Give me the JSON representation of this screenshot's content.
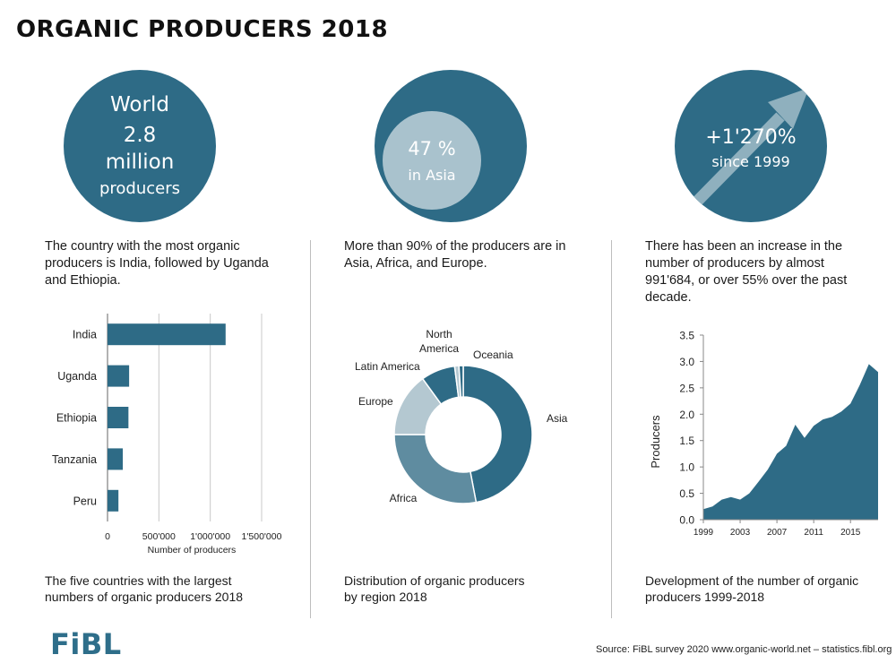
{
  "title": "ORGANIC PRODUCERS 2018",
  "colors": {
    "primary": "#2e6b86",
    "light": "#a9c2cd",
    "mid": "#5f8ca0",
    "pale": "#b4c8d1"
  },
  "panels": [
    {
      "circle": {
        "line1": "World",
        "line2": "2.8",
        "line3": "million",
        "line4": "producers"
      },
      "text": "The country with the most organic producers is India, followed by Uganda and Ethiopia.",
      "caption": "The five countries with the largest numbers of organic producers 2018"
    },
    {
      "circle": {
        "value": "47 %",
        "label": "in Asia"
      },
      "text": "More than 90% of the producers are in Asia, Africa, and Europe.",
      "caption": "Distribution of organic producers by region 2018"
    },
    {
      "circle": {
        "value": "+1'270%",
        "label": "since 1999"
      },
      "text": "There has been an increase in the number of producers by almost 991'684, or over 55% over the past decade.",
      "caption": "Development of the number of organic producers 1999-2018"
    }
  ],
  "chart_data": [
    {
      "type": "bar",
      "orientation": "horizontal",
      "categories": [
        "India",
        "Uganda",
        "Ethiopia",
        "Tanzania",
        "Peru"
      ],
      "values": [
        1149371,
        210352,
        203602,
        148610,
        106177
      ],
      "xlabel": "Number of producers",
      "xlim": [
        0,
        1500000
      ],
      "xticks": [
        "0",
        "500'000",
        "1'000'000",
        "1'500'000"
      ],
      "xtick_values": [
        0,
        500000,
        1000000,
        1500000
      ],
      "grid": true
    },
    {
      "type": "pie",
      "donut": true,
      "categories": [
        "Asia",
        "Africa",
        "Europe",
        "Latin America",
        "North America",
        "Oceania"
      ],
      "values": [
        47,
        28,
        15,
        8,
        1,
        1
      ]
    },
    {
      "type": "area",
      "x": [
        1999,
        2000,
        2001,
        2002,
        2003,
        2004,
        2005,
        2006,
        2007,
        2008,
        2009,
        2010,
        2011,
        2012,
        2013,
        2014,
        2015,
        2016,
        2017,
        2018
      ],
      "values": [
        0.2,
        0.25,
        0.38,
        0.43,
        0.38,
        0.5,
        0.72,
        0.95,
        1.25,
        1.4,
        1.8,
        1.55,
        1.78,
        1.9,
        1.95,
        2.05,
        2.2,
        2.55,
        2.95,
        2.8
      ],
      "ylabel": "Producers",
      "ylim": [
        0,
        3.5
      ],
      "yticks": [
        "0.0",
        "0.5",
        "1.0",
        "1.5",
        "2.0",
        "2.5",
        "3.0",
        "3.5"
      ],
      "ytick_values": [
        0,
        0.5,
        1,
        1.5,
        2,
        2.5,
        3,
        3.5
      ],
      "xticks": [
        "1999",
        "2003",
        "2007",
        "2011",
        "2015"
      ],
      "xtick_values": [
        1999,
        2003,
        2007,
        2011,
        2015
      ]
    }
  ],
  "logo": "FiBL",
  "source": "Source: FiBL survey 2020  www.organic-world.net – statistics.fibl.org"
}
